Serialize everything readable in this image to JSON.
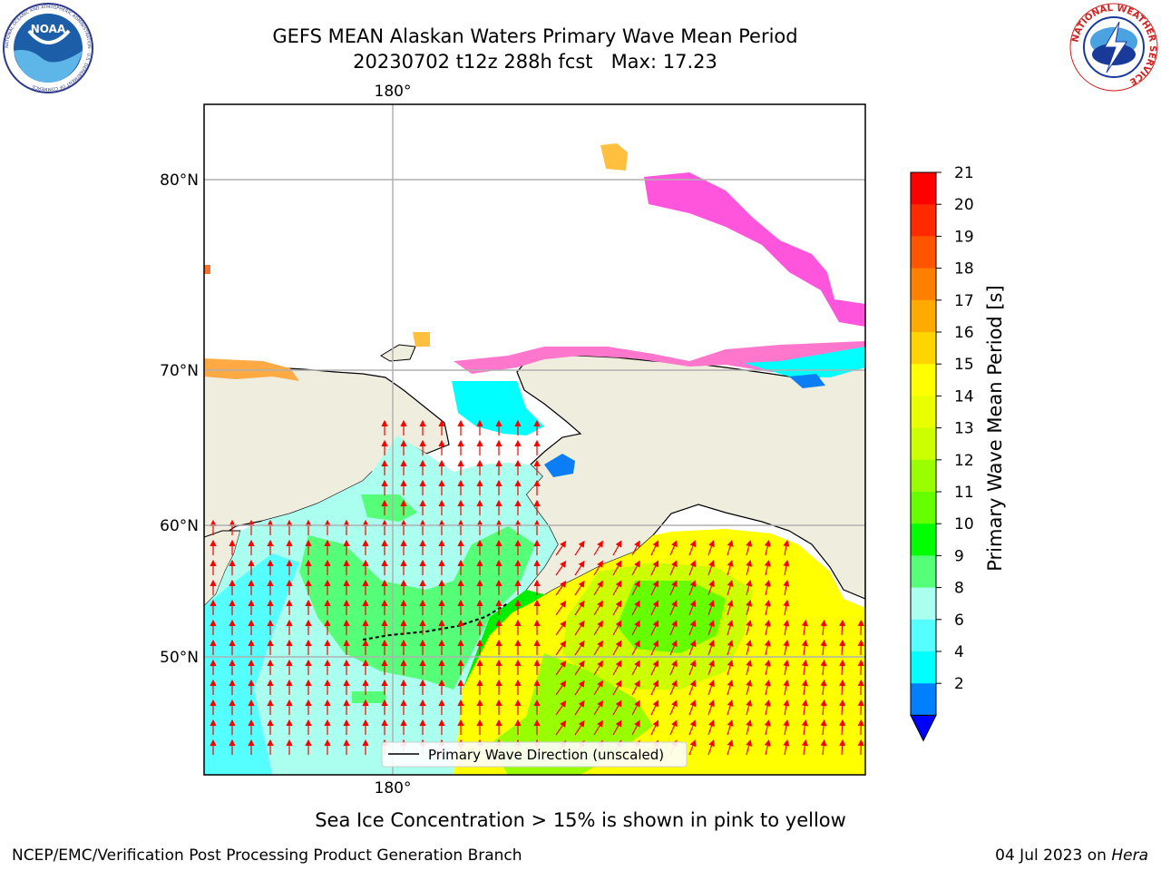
{
  "header": {
    "title_line1": "GEFS MEAN Alaskan Waters Primary Wave Mean Period",
    "title_line2": "20230702 t12z 288h fcst   Max: 17.23"
  },
  "logos": {
    "left": "NOAA",
    "left_ring": "NATIONAL OCEANIC AND ATMOSPHERIC ADMINISTRATION · U.S. DEPARTMENT OF COMMERCE",
    "right_ring": "NATIONAL WEATHER SERVICE"
  },
  "map": {
    "lon_label_top": "180°",
    "lon_label_bottom": "180°",
    "lat_labels": [
      "80°N",
      "70°N",
      "60°N",
      "50°N"
    ],
    "legend": "Primary Wave Direction (unscaled)"
  },
  "colorbar": {
    "label": "Primary Wave Mean Period [s]",
    "ticks": [
      "21",
      "20",
      "19",
      "18",
      "17",
      "16",
      "15",
      "14",
      "13",
      "12",
      "11",
      "10",
      "9",
      "8",
      "6",
      "4",
      "2"
    ],
    "colors": [
      "#ff0000",
      "#ff2a00",
      "#ff5500",
      "#ff8000",
      "#ffaa00",
      "#ffd400",
      "#ffff00",
      "#e9ff00",
      "#ccff00",
      "#99ff00",
      "#66ff00",
      "#00ff00",
      "#55ff77",
      "#aaffee",
      "#55ffff",
      "#00ffff",
      "#0080ff"
    ],
    "extend_color": "#0000ff"
  },
  "caption": "Sea Ice Concentration > 15% is shown in pink to yellow",
  "footer": {
    "left": "NCEP/EMC/Verification Post Processing Product Generation Branch",
    "date": "04 Jul 2023 on ",
    "host": "Hera"
  }
}
